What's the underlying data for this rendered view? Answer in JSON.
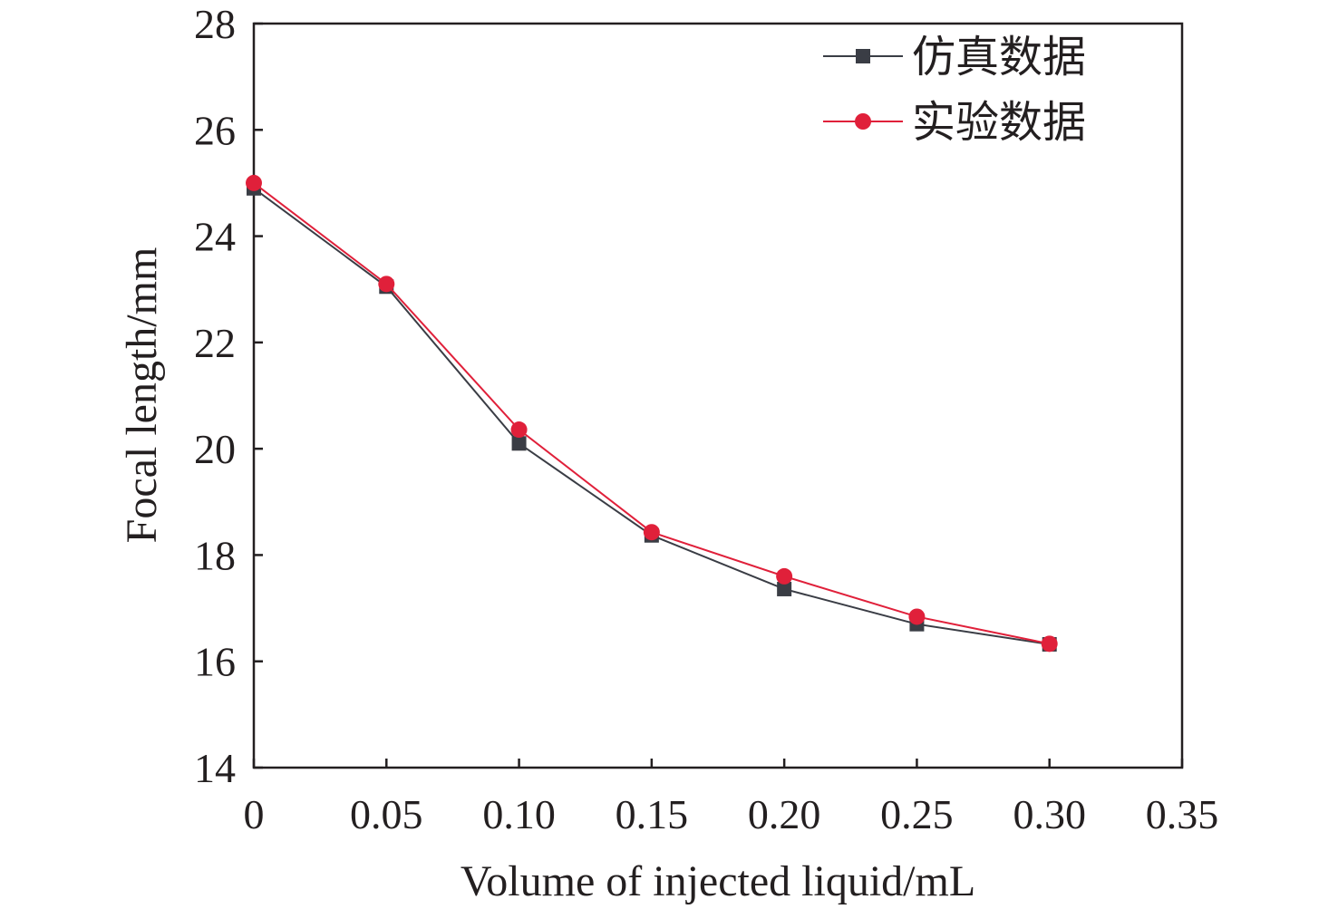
{
  "chart_data": {
    "type": "line",
    "title": "",
    "xlabel": "Volume of injected liquid/mL",
    "ylabel": "Focal length/mm",
    "xlim": [
      0,
      0.35
    ],
    "ylim": [
      14,
      28
    ],
    "x_ticks": [
      "0",
      "0.05",
      "0.10",
      "0.15",
      "0.20",
      "0.25",
      "0.30",
      "0.35"
    ],
    "y_ticks": [
      "14",
      "16",
      "18",
      "20",
      "22",
      "24",
      "26",
      "28"
    ],
    "grid": false,
    "legend_position": "top-right",
    "x": [
      0,
      0.05,
      0.1,
      0.15,
      0.2,
      0.25,
      0.3
    ],
    "series": [
      {
        "name": "仿真数据",
        "color": "#3a3d45",
        "marker": "square",
        "values": [
          24.9,
          23.05,
          20.1,
          18.37,
          17.36,
          16.7,
          16.32
        ]
      },
      {
        "name": "实验数据",
        "color": "#e0203a",
        "marker": "circle",
        "values": [
          25.0,
          23.1,
          20.36,
          18.43,
          17.6,
          16.84,
          16.33
        ]
      }
    ]
  }
}
